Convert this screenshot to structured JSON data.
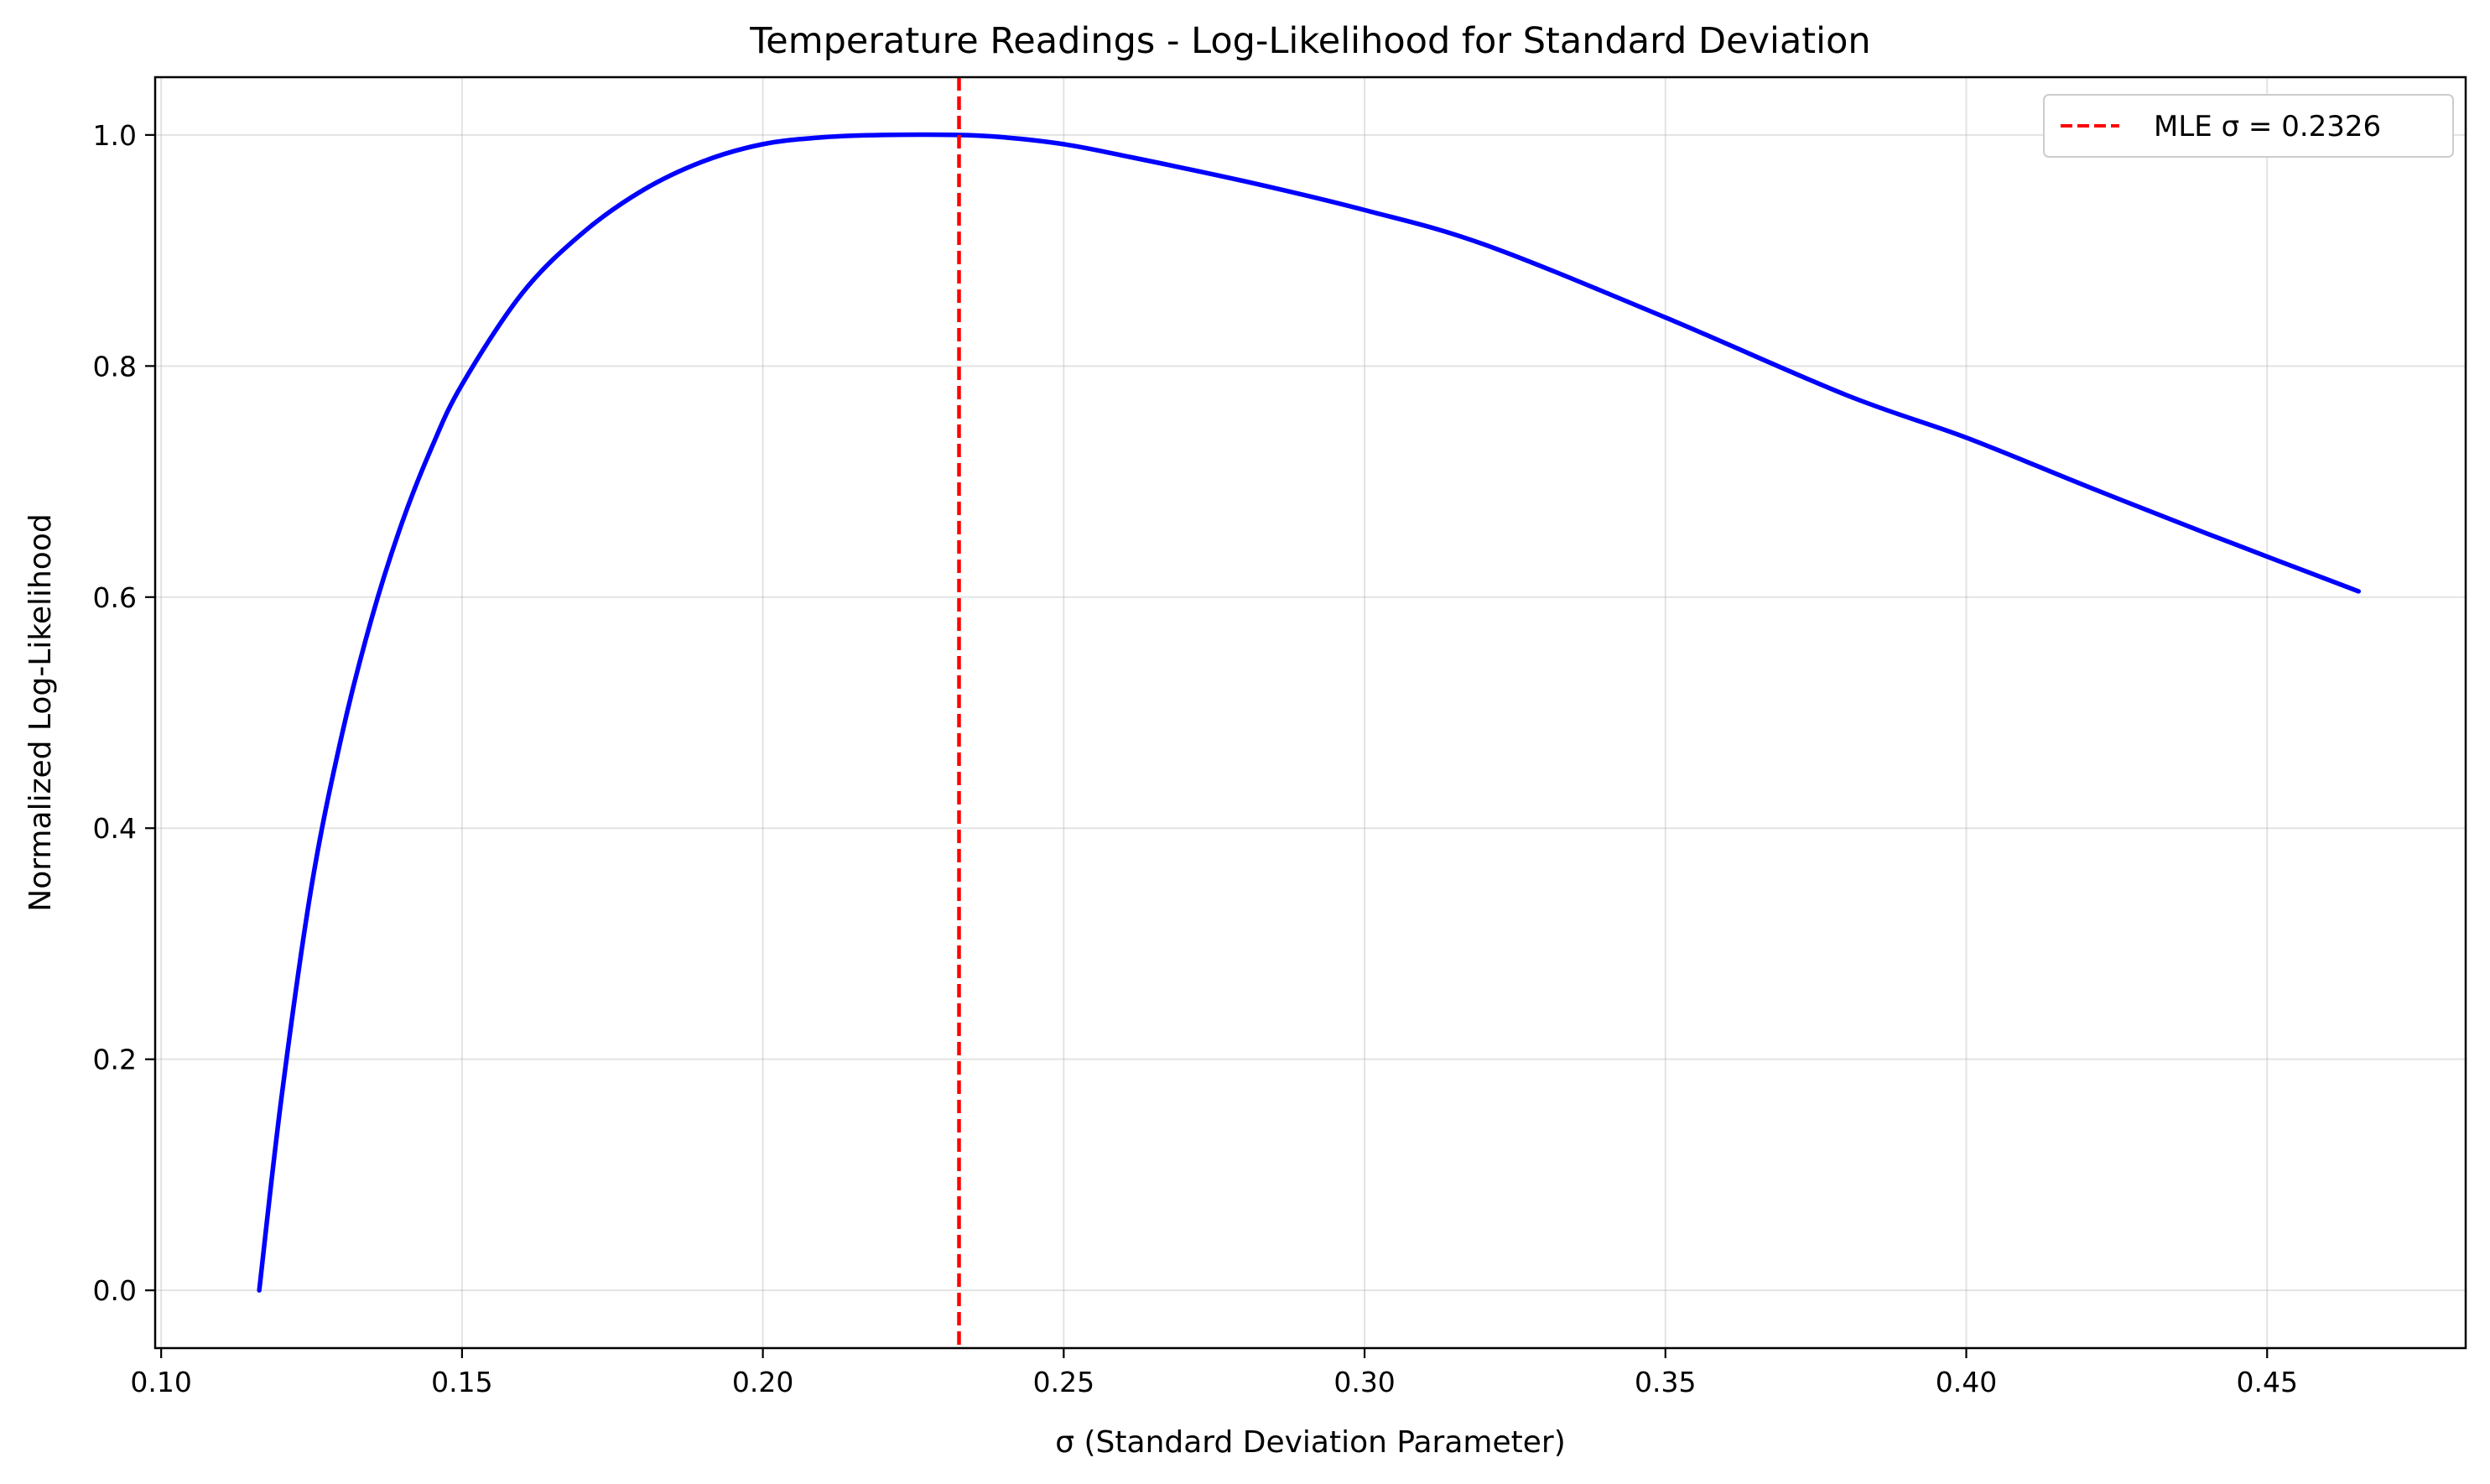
{
  "chart_data": {
    "type": "line",
    "title": "Temperature Readings - Log-Likelihood for Standard Deviation",
    "xlabel": "σ (Standard Deviation Parameter)",
    "ylabel": "Normalized Log-Likelihood",
    "xlim": [
      0.099,
      0.483
    ],
    "ylim": [
      -0.05,
      1.05
    ],
    "xticks": [
      0.1,
      0.15,
      0.2,
      0.25,
      0.3,
      0.35,
      0.4,
      0.45
    ],
    "xtick_labels": [
      "0.10",
      "0.15",
      "0.20",
      "0.25",
      "0.30",
      "0.35",
      "0.40",
      "0.45"
    ],
    "yticks": [
      0.0,
      0.2,
      0.4,
      0.6,
      0.8,
      1.0
    ],
    "ytick_labels": [
      "0.0",
      "0.2",
      "0.4",
      "0.6",
      "0.8",
      "1.0"
    ],
    "grid": true,
    "legend_position": "top-right",
    "series": [
      {
        "name": "",
        "color": "#0000ff",
        "x": [
          0.1163,
          0.12,
          0.125,
          0.13,
          0.135,
          0.14,
          0.145,
          0.15,
          0.16,
          0.17,
          0.18,
          0.19,
          0.2,
          0.21,
          0.22,
          0.2326,
          0.24,
          0.25,
          0.26,
          0.28,
          0.3,
          0.32,
          0.35,
          0.38,
          0.4,
          0.42,
          0.44,
          0.4652
        ],
        "y": [
          0.0,
          0.167,
          0.35,
          0.48,
          0.582,
          0.664,
          0.73,
          0.784,
          0.863,
          0.915,
          0.952,
          0.977,
          0.992,
          0.998,
          1.0,
          1.0,
          0.998,
          0.992,
          0.982,
          0.96,
          0.935,
          0.905,
          0.842,
          0.775,
          0.738,
          0.696,
          0.655,
          0.605
        ]
      }
    ],
    "vline": {
      "x": 0.2326,
      "label": "MLE σ = 0.2326",
      "color": "#ff0000"
    }
  }
}
